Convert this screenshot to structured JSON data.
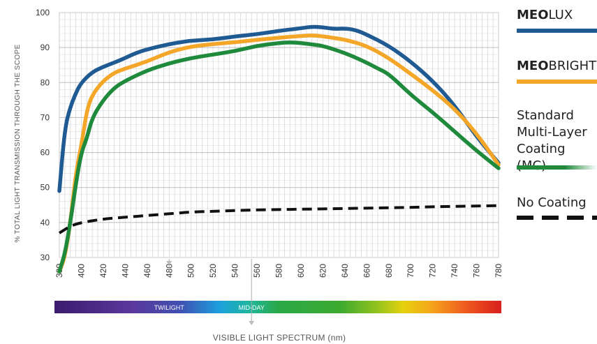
{
  "chart_data": {
    "type": "line",
    "xlabel": "VISIBLE LIGHT SPECTRUM (nm)",
    "ylabel": "% TOTAL LIGHT TRANSMISSION THROUGH THE SCOPE",
    "xlim": [
      380,
      780
    ],
    "ylim": [
      30,
      100
    ],
    "x_ticks": [
      "380",
      "400",
      "420",
      "440",
      "460",
      "480",
      "500",
      "520",
      "540",
      "560",
      "580",
      "600",
      "620",
      "640",
      "660",
      "680",
      "700",
      "720",
      "740",
      "760",
      "780"
    ],
    "y_ticks": [
      "30",
      "40",
      "50",
      "60",
      "70",
      "80",
      "90",
      "100"
    ],
    "grid": true,
    "spectrum_bar": {
      "labels": [
        "TWILIGHT",
        "MID-DAY"
      ],
      "twilight_nm": 480,
      "midday_nm": 555
    },
    "series": [
      {
        "name": "MEOLUX",
        "name_bold": "MEO",
        "name_rest": "LUX",
        "color": "#1f5a93",
        "x": [
          380,
          385,
          390,
          395,
          400,
          410,
          420,
          430,
          440,
          450,
          460,
          480,
          500,
          520,
          540,
          560,
          580,
          600,
          610,
          620,
          630,
          640,
          650,
          660,
          680,
          700,
          720,
          740,
          760,
          780
        ],
        "y": [
          49,
          67,
          73,
          77,
          80,
          83,
          84.5,
          85.7,
          87,
          88.5,
          89.5,
          91,
          92,
          92.3,
          93.2,
          93.8,
          94.8,
          95.5,
          96,
          95.8,
          95.3,
          95.5,
          95,
          93.7,
          90.5,
          86,
          80.5,
          73.5,
          64.5,
          57
        ]
      },
      {
        "name": "MEOBRIGHT",
        "name_bold": "MEO",
        "name_rest": "BRIGHT",
        "color": "#f4a629",
        "x": [
          380,
          385,
          390,
          395,
          400,
          405,
          410,
          420,
          430,
          440,
          460,
          480,
          500,
          520,
          540,
          560,
          580,
          600,
          610,
          620,
          640,
          660,
          680,
          700,
          720,
          740,
          760,
          780
        ],
        "y": [
          26,
          30,
          40,
          54,
          62,
          72,
          76.5,
          80.5,
          82.8,
          84,
          86,
          88.7,
          90.3,
          91,
          91.5,
          92.2,
          92.8,
          93.3,
          93.5,
          93.2,
          92.3,
          90.5,
          87,
          82.5,
          77.8,
          72.5,
          65.5,
          56.5
        ]
      },
      {
        "name": "Standard Multi-Layer Coating (MC)",
        "name_bold": "",
        "name_rest": "Standard\nMulti-Layer\nCoating (MC)",
        "color": "#1f8a3c",
        "x": [
          380,
          385,
          390,
          395,
          400,
          405,
          410,
          420,
          430,
          440,
          460,
          480,
          500,
          520,
          540,
          560,
          580,
          590,
          600,
          610,
          620,
          640,
          660,
          670,
          680,
          700,
          720,
          740,
          760,
          780
        ],
        "y": [
          26,
          31,
          40,
          51,
          60,
          64,
          70,
          75,
          78.5,
          80.5,
          83.5,
          85.5,
          87,
          88,
          89,
          90.5,
          91.3,
          91.5,
          91.3,
          90.9,
          90.5,
          88.5,
          85.7,
          84,
          82.5,
          76.5,
          71.5,
          66,
          60.5,
          55.5
        ]
      },
      {
        "name": "No Coating",
        "name_bold": "",
        "name_rest": "No Coating",
        "color": "#111111",
        "dashed": true,
        "x": [
          380,
          390,
          400,
          420,
          440,
          460,
          480,
          500,
          520,
          540,
          560,
          580,
          600,
          620,
          640,
          660,
          680,
          700,
          720,
          740,
          760,
          780
        ],
        "y": [
          37,
          39,
          40,
          41,
          41.5,
          42,
          42.5,
          43,
          43.2,
          43.4,
          43.6,
          43.7,
          43.8,
          43.9,
          44,
          44.1,
          44.2,
          44.3,
          44.5,
          44.6,
          44.7,
          44.8
        ]
      }
    ]
  }
}
